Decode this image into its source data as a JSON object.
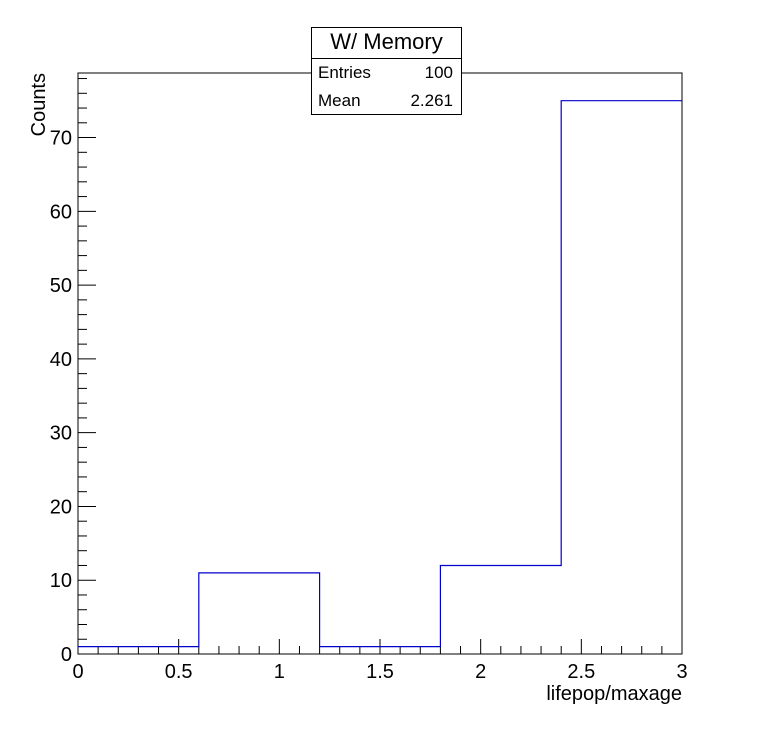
{
  "chart_data": {
    "type": "bar",
    "style": "step-histogram",
    "title": "W/ Memory",
    "xlabel": "lifepop/maxage",
    "ylabel": "Counts",
    "bin_edges": [
      0,
      0.6,
      1.2,
      1.8,
      2.4,
      3.0
    ],
    "values": [
      1,
      11,
      1,
      12,
      75
    ],
    "xlim": [
      0,
      3
    ],
    "ylim": [
      0,
      78.75
    ],
    "x_ticks": [
      "0",
      "0.5",
      "1",
      "1.5",
      "2",
      "2.5",
      "3"
    ],
    "y_ticks": [
      "0",
      "10",
      "20",
      "30",
      "40",
      "50",
      "60",
      "70"
    ],
    "line_color": "#0000cc",
    "grid": false,
    "stats": {
      "title": "W/ Memory",
      "entries_label": "Entries",
      "entries_value": "100",
      "mean_label": "Mean",
      "mean_value": "2.261"
    }
  }
}
